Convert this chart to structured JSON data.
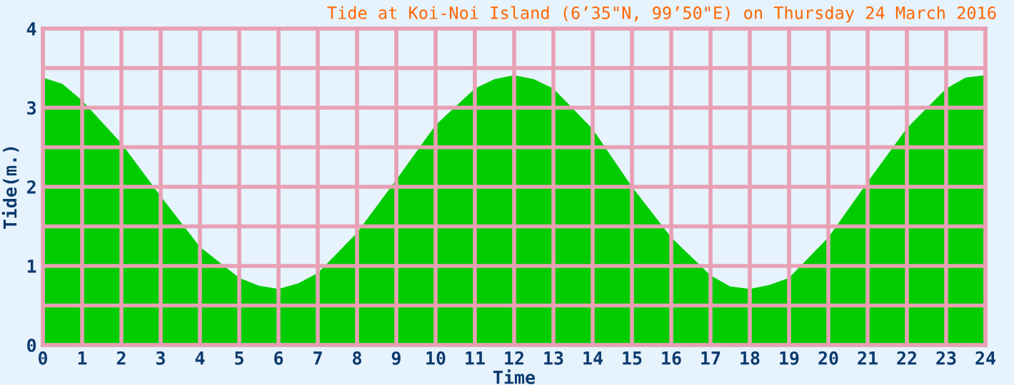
{
  "chart_data": {
    "type": "area",
    "title": "Tide at Koi-Noi Island (6’35\"N, 99’50\"E) on Thursday 24 March 2016",
    "xlabel": "Time",
    "ylabel": "Tide(m.)",
    "series": [
      {
        "color": "#00cc00",
        "x": [
          0,
          0.5,
          1,
          2,
          3,
          4,
          5,
          5.5,
          6,
          6.5,
          7,
          8,
          9,
          10,
          11,
          11.5,
          12,
          12.5,
          13,
          14,
          15,
          16,
          17,
          17.5,
          18,
          18.5,
          19,
          20,
          21,
          22,
          23,
          23.5,
          24
        ],
        "values": [
          3.38,
          3.3,
          3.09,
          2.55,
          1.88,
          1.24,
          0.85,
          0.75,
          0.71,
          0.78,
          0.91,
          1.42,
          2.09,
          2.78,
          3.24,
          3.36,
          3.41,
          3.36,
          3.24,
          2.73,
          2.0,
          1.36,
          0.88,
          0.74,
          0.71,
          0.76,
          0.85,
          1.36,
          2.06,
          2.74,
          3.24,
          3.38,
          3.41
        ]
      }
    ],
    "xlim": [
      0,
      24
    ],
    "xticks": [
      0,
      1,
      2,
      3,
      4,
      5,
      6,
      7,
      8,
      9,
      10,
      11,
      12,
      13,
      14,
      15,
      16,
      17,
      18,
      19,
      20,
      21,
      22,
      23,
      24
    ],
    "ylim": [
      0,
      4
    ],
    "yticks": [
      0,
      {
        "value": 0.5,
        "label": null
      },
      1,
      {
        "value": 1.5,
        "label": null
      },
      2,
      {
        "value": 2.5,
        "label": null
      },
      3,
      {
        "value": 3.5,
        "label": null
      },
      4
    ],
    "grid": true
  }
}
